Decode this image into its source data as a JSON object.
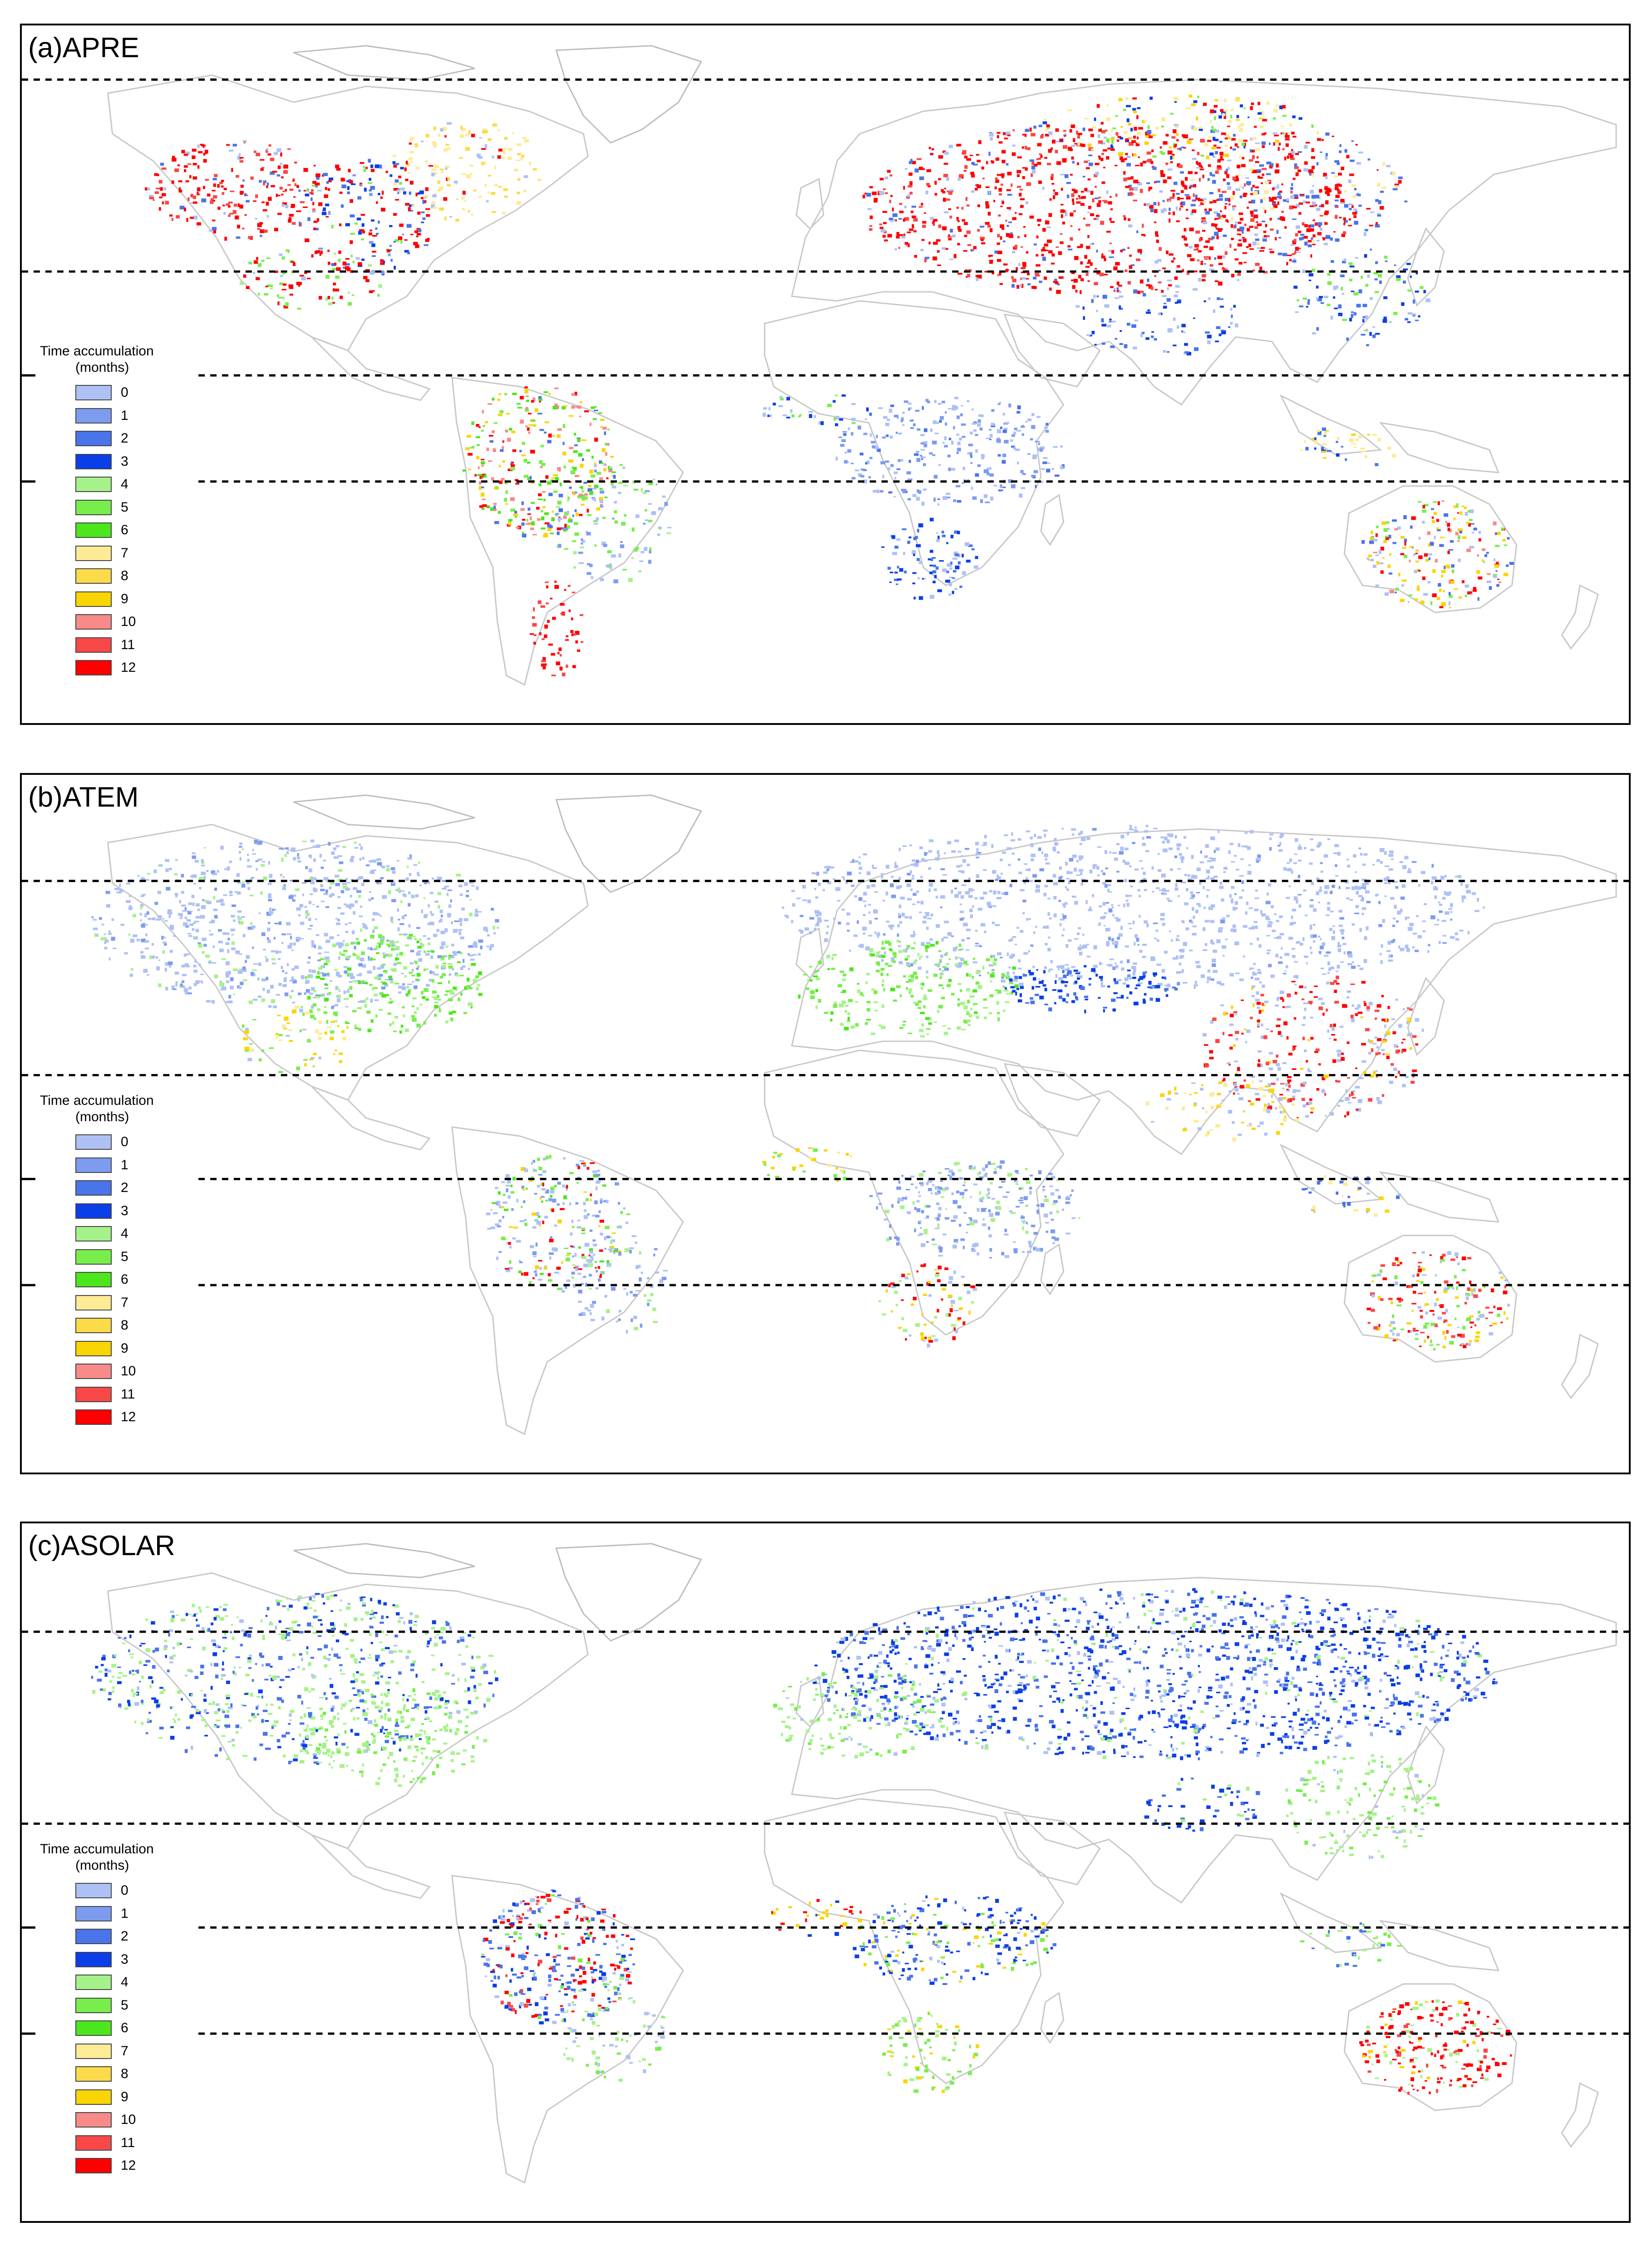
{
  "legend": {
    "title": "Time accumulation",
    "subtitle": "(months)",
    "items": [
      {
        "label": "0",
        "color": "#aec1f5"
      },
      {
        "label": "1",
        "color": "#7d9cf0"
      },
      {
        "label": "2",
        "color": "#4a74ea"
      },
      {
        "label": "3",
        "color": "#0a3ee6"
      },
      {
        "label": "4",
        "color": "#a6f28a"
      },
      {
        "label": "5",
        "color": "#78ee4c"
      },
      {
        "label": "6",
        "color": "#4ce61c"
      },
      {
        "label": "7",
        "color": "#fdeb96"
      },
      {
        "label": "8",
        "color": "#fcdb4a"
      },
      {
        "label": "9",
        "color": "#fad505"
      },
      {
        "label": "10",
        "color": "#f88a8a"
      },
      {
        "label": "11",
        "color": "#f84848"
      },
      {
        "label": "12",
        "color": "#ff0000"
      }
    ]
  },
  "panels": [
    {
      "title": "(a)APRE"
    },
    {
      "title": "(b)ATEM"
    },
    {
      "title": "(c)ASOLAR"
    }
  ],
  "colors": {
    "land_outline": "#c8c8c8",
    "ice_outline": "#bdbdbd",
    "dashed_line": "#000000"
  }
}
